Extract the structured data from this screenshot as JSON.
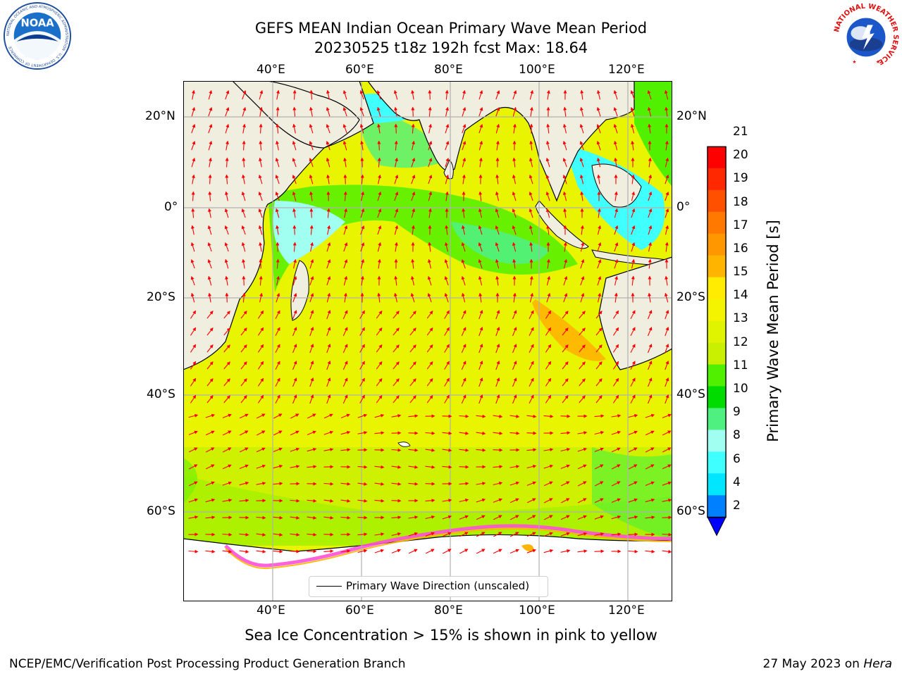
{
  "title": {
    "line1": "GEFS MEAN Indian Ocean Primary Wave Mean Period",
    "line2": "20230525 t18z 192h fcst   Max: 18.64"
  },
  "map": {
    "lon_range": [
      20,
      130
    ],
    "lat_range": [
      -72,
      28
    ],
    "lon_labels": [
      "40°E",
      "60°E",
      "80°E",
      "100°E",
      "120°E"
    ],
    "lat_labels": [
      "20°N",
      "0°",
      "20°S",
      "40°S",
      "60°S"
    ],
    "colors": {
      "land": "#efeedf",
      "ice_land": "#ffffff",
      "sea_ice": "#ff4fd8",
      "arrow": "#ff0000",
      "gridline": "#b0b0b0"
    }
  },
  "colorbar": {
    "label": "Primary Wave Mean Period [s]",
    "ticks": [
      "21",
      "20",
      "19",
      "18",
      "17",
      "16",
      "15",
      "14",
      "13",
      "12",
      "11",
      "10",
      "9",
      "8",
      "6",
      "4",
      "2"
    ],
    "colors": [
      "#ff0000",
      "#ff2800",
      "#ff5000",
      "#ff7800",
      "#ff9800",
      "#ffb400",
      "#ffec00",
      "#f4f400",
      "#e0f400",
      "#c8f000",
      "#50f000",
      "#00dc00",
      "#50f080",
      "#a0fff0",
      "#40ffff",
      "#00e6ff",
      "#0080ff",
      "#0000ff"
    ]
  },
  "legend": {
    "label": "Primary Wave Direction (unscaled)"
  },
  "note": "Sea Ice Concentration > 15% is shown in pink to yellow",
  "footer": {
    "left": "NCEP/EMC/Verification Post Processing Product Generation Branch",
    "date": "27 May 2023 on",
    "machine": "Hera"
  },
  "logos": {
    "noaa": {
      "text": "NOAA",
      "ring_text": "NATIONAL OCEANIC AND ATMOSPHERIC ADMINISTRATION · U.S. DEPARTMENT OF COMMERCE"
    },
    "nws": {
      "ring_text": "NATIONAL WEATHER SERVICE"
    }
  }
}
